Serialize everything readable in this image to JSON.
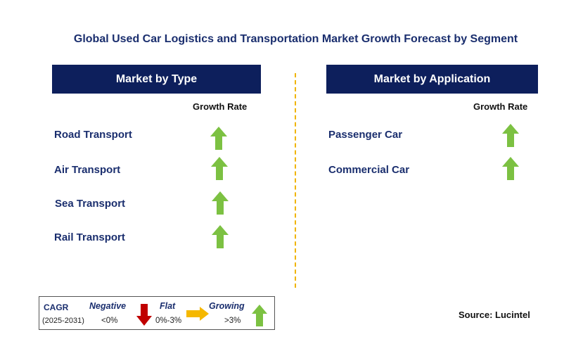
{
  "title": "Global Used Car Logistics and Transportation Market Growth Forecast by Segment",
  "colors": {
    "header_bg": "#0d1f5c",
    "growing": "#7cc142",
    "negative": "#c00000",
    "flat": "#f5b800",
    "divider": "#f0b400"
  },
  "left_panel": {
    "header": "Market by Type",
    "column_header": "Growth Rate",
    "rows": [
      {
        "label": "Road Transport",
        "trend": "growing"
      },
      {
        "label": "Air Transport",
        "trend": "growing"
      },
      {
        "label": "Sea Transport",
        "trend": "growing"
      },
      {
        "label": "Rail Transport",
        "trend": "growing"
      }
    ]
  },
  "right_panel": {
    "header": "Market by Application",
    "column_header": "Growth Rate",
    "rows": [
      {
        "label": "Passenger Car",
        "trend": "growing"
      },
      {
        "label": "Commercial Car",
        "trend": "growing"
      }
    ]
  },
  "legend": {
    "cagr_label": "CAGR",
    "period": "(2025-2031)",
    "negative_label": "Negative",
    "negative_range": "<0%",
    "flat_label": "Flat",
    "flat_range": "0%-3%",
    "growing_label": "Growing",
    "growing_range": ">3%"
  },
  "source": "Source: Lucintel"
}
